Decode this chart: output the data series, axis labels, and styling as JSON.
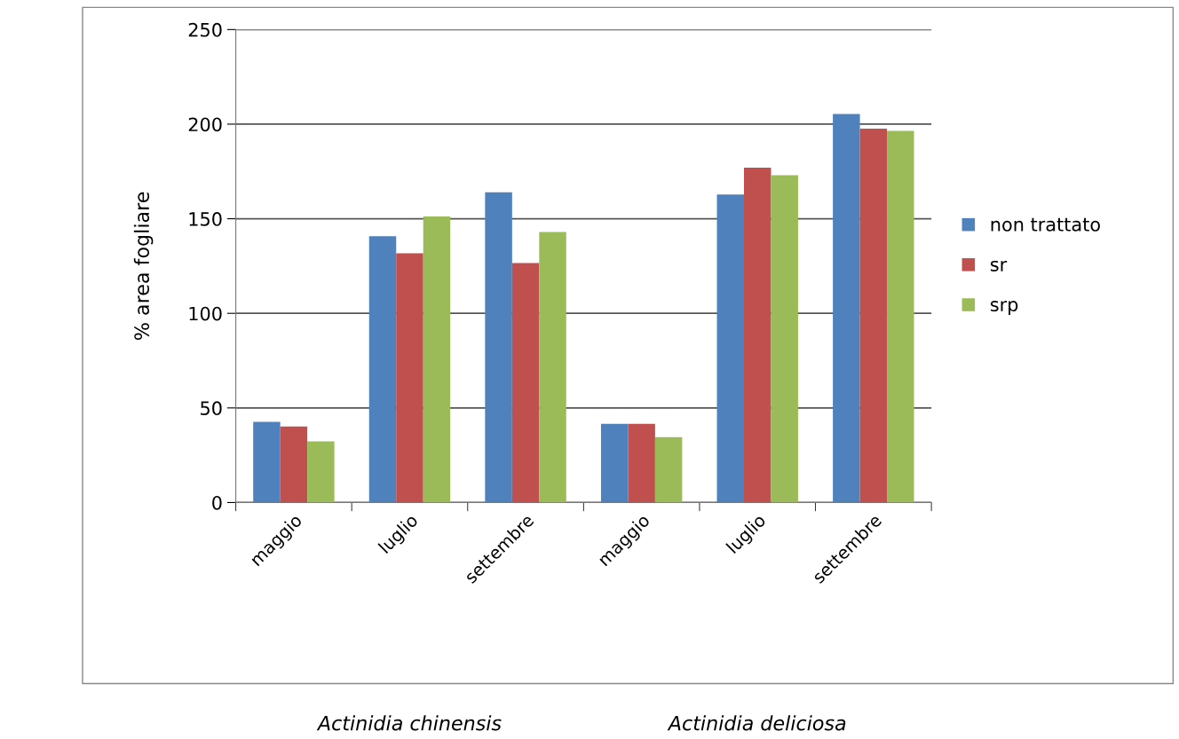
{
  "chart_data": {
    "type": "bar",
    "ylabel": "% area fogliare",
    "categories": [
      "maggio",
      "luglio",
      "settembre",
      "maggio",
      "luglio",
      "settembre"
    ],
    "series": [
      {
        "name": "non trattato",
        "color": "#4f81bd",
        "values": [
          42.7,
          140.8,
          164,
          41.6,
          162.8,
          205.4
        ]
      },
      {
        "name": "sr",
        "color": "#c0504d",
        "values": [
          40.2,
          131.7,
          126.6,
          41.6,
          177,
          197.6
        ]
      },
      {
        "name": "srp",
        "color": "#9bbb59",
        "values": [
          32.3,
          151.2,
          143,
          34.6,
          173,
          196.4
        ]
      }
    ],
    "ylim": [
      0,
      250
    ],
    "yticks": [
      0,
      50,
      100,
      150,
      200,
      250
    ],
    "grid": "y",
    "legend": "right",
    "annotations": [
      "Actinidia chinensis",
      "Actinidia deliciosa"
    ]
  }
}
